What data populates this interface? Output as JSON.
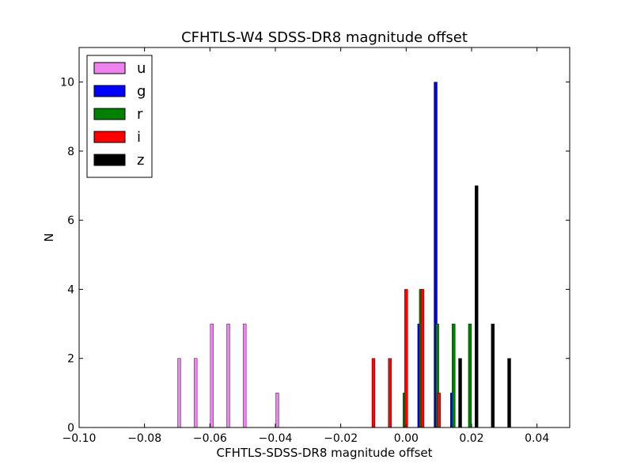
{
  "chart_data": {
    "type": "bar",
    "title": "CFHTLS-W4 SDSS-DR8 magnitude offset",
    "xlabel": "CFHTLS-SDSS-DR8 magnitude offset",
    "ylabel": "N",
    "xlim": [
      -0.1,
      0.05
    ],
    "ylim": [
      0,
      11
    ],
    "xticks": [
      -0.1,
      -0.08,
      -0.06,
      -0.04,
      -0.02,
      0.0,
      0.02,
      0.04
    ],
    "xtick_labels": [
      "−0.10",
      "−0.08",
      "−0.06",
      "−0.04",
      "−0.02",
      "0.00",
      "0.02",
      "0.04"
    ],
    "yticks": [
      0,
      2,
      4,
      6,
      8,
      10
    ],
    "ytick_labels": [
      "0",
      "2",
      "4",
      "6",
      "8",
      "10"
    ],
    "grid": false,
    "legend_position": "top-left",
    "series": [
      {
        "name": "u",
        "color": "#ee82ee",
        "points": [
          {
            "x": -0.0694,
            "y": 2
          },
          {
            "x": -0.0644,
            "y": 2
          },
          {
            "x": -0.0594,
            "y": 3
          },
          {
            "x": -0.0544,
            "y": 3
          },
          {
            "x": -0.0494,
            "y": 3
          },
          {
            "x": -0.0394,
            "y": 1
          }
        ]
      },
      {
        "name": "g",
        "color": "#0000ff",
        "points": [
          {
            "x": 0.004,
            "y": 3
          },
          {
            "x": 0.009,
            "y": 10
          },
          {
            "x": 0.014,
            "y": 1
          }
        ]
      },
      {
        "name": "r",
        "color": "#008000",
        "points": [
          {
            "x": -0.0005,
            "y": 1
          },
          {
            "x": 0.0045,
            "y": 4
          },
          {
            "x": 0.0095,
            "y": 3
          },
          {
            "x": 0.0145,
            "y": 3
          },
          {
            "x": 0.0195,
            "y": 3
          }
        ]
      },
      {
        "name": "i",
        "color": "#ff0000",
        "points": [
          {
            "x": -0.01,
            "y": 2
          },
          {
            "x": -0.005,
            "y": 2
          },
          {
            "x": 0.0,
            "y": 4
          },
          {
            "x": 0.005,
            "y": 4
          },
          {
            "x": 0.01,
            "y": 1
          }
        ]
      },
      {
        "name": "z",
        "color": "#000000",
        "points": [
          {
            "x": 0.0165,
            "y": 2
          },
          {
            "x": 0.0215,
            "y": 7
          },
          {
            "x": 0.0265,
            "y": 3
          },
          {
            "x": 0.0315,
            "y": 2
          }
        ]
      }
    ]
  }
}
